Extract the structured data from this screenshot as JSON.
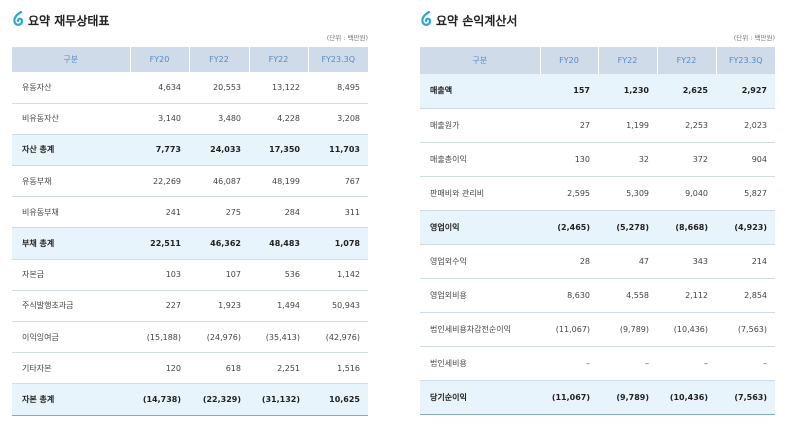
{
  "tables": [
    {
      "title": "요약 재무상태표",
      "unit": "(단위 : 백만원)",
      "columns": [
        "구분",
        "FY20",
        "FY22",
        "FY22",
        "FY23.3Q"
      ],
      "rows": [
        [
          "유동자산",
          "4,634",
          "20,553",
          "13,122",
          "8,495"
        ],
        [
          "비유동자산",
          "3,140",
          "3,480",
          "4,228",
          "3,208"
        ],
        [
          "자산 총계",
          "7,773",
          "24,033",
          "17,350",
          "11,703"
        ],
        [
          "유동부채",
          "22,269",
          "46,087",
          "48,199",
          "767"
        ],
        [
          "비유동부채",
          "241",
          "275",
          "284",
          "311"
        ],
        [
          "부채 총계",
          "22,511",
          "46,362",
          "48,483",
          "1,078"
        ],
        [
          "자본금",
          "103",
          "107",
          "536",
          "1,142"
        ],
        [
          "주식발행초과금",
          "227",
          "1,923",
          "1,494",
          "50,943"
        ],
        [
          "이익잉여금",
          "(15,188)",
          "(24,976)",
          "(35,413)",
          "(42,976)"
        ],
        [
          "기타자본",
          "120",
          "618",
          "2,251",
          "1,516"
        ],
        [
          "자본 총계",
          "(14,738)",
          "(22,329)",
          "(31,132)",
          "10,625"
        ]
      ]
    },
    {
      "title": "요약 손익계산서",
      "unit": "(단위 : 백만원)",
      "columns": [
        "구분",
        "FY20",
        "FY22",
        "FY22",
        "FY23.3Q"
      ],
      "rows": [
        [
          "매출액",
          "157",
          "1,230",
          "2,625",
          "2,927"
        ],
        [
          "매출원가",
          "27",
          "1,199",
          "2,253",
          "2,023"
        ],
        [
          "매출총이익",
          "130",
          "32",
          "372",
          "904"
        ],
        [
          "판매비와 관리비",
          "2,595",
          "5,309",
          "9,040",
          "5,827"
        ],
        [
          "영업이익",
          "(2,465)",
          "(5,278)",
          "(8,668)",
          "(4,923)"
        ],
        [
          "영업외수익",
          "28",
          "47",
          "343",
          "214"
        ],
        [
          "영업외비용",
          "8,630",
          "4,558",
          "2,112",
          "2,854"
        ],
        [
          "법인세비용차감전순이익",
          "(11,067)",
          "(9,789)",
          "(10,436)",
          "(7,563)"
        ],
        [
          "법인세비용",
          "–",
          "–",
          "–",
          "–"
        ],
        [
          "당기순이익",
          "(11,067)",
          "(9,789)",
          "(10,436)",
          "(7,563)"
        ]
      ]
    }
  ]
}
